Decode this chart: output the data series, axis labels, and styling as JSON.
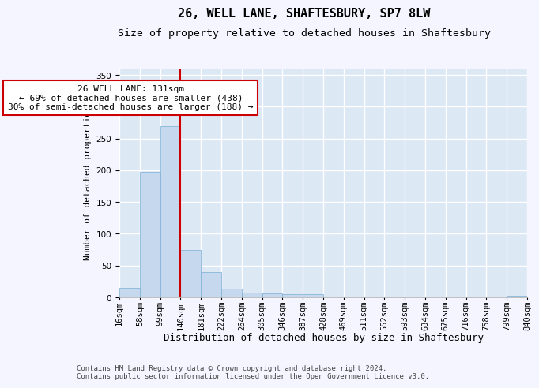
{
  "title1": "26, WELL LANE, SHAFTESBURY, SP7 8LW",
  "title2": "Size of property relative to detached houses in Shaftesbury",
  "xlabel": "Distribution of detached houses by size in Shaftesbury",
  "ylabel": "Number of detached properties",
  "bar_values": [
    15,
    198,
    270,
    75,
    40,
    14,
    8,
    6,
    5,
    5,
    0,
    0,
    0,
    0,
    0,
    0,
    0,
    0,
    0,
    3
  ],
  "bar_labels": [
    "16sqm",
    "58sqm",
    "99sqm",
    "140sqm",
    "181sqm",
    "222sqm",
    "264sqm",
    "305sqm",
    "346sqm",
    "387sqm",
    "428sqm",
    "469sqm",
    "511sqm",
    "552sqm",
    "593sqm",
    "634sqm",
    "675sqm",
    "716sqm",
    "758sqm",
    "799sqm",
    "840sqm"
  ],
  "bar_color": "#c5d8ed",
  "bar_edge_color": "#7aaed6",
  "background_color": "#dde8f5",
  "grid_color": "#ffffff",
  "vline_color": "#cc0000",
  "annotation_line1": "26 WELL LANE: 131sqm",
  "annotation_line2": "← 69% of detached houses are smaller (438)",
  "annotation_line3": "30% of semi-detached houses are larger (188) →",
  "annotation_box_color": "#ffffff",
  "annotation_box_edge": "#cc0000",
  "ylim": [
    0,
    360
  ],
  "yticks": [
    0,
    50,
    100,
    150,
    200,
    250,
    300,
    350
  ],
  "footer_text": "Contains HM Land Registry data © Crown copyright and database right 2024.\nContains public sector information licensed under the Open Government Licence v3.0.",
  "title1_fontsize": 11,
  "title2_fontsize": 9.5,
  "xlabel_fontsize": 9,
  "ylabel_fontsize": 8,
  "tick_fontsize": 7.5,
  "annotation_fontsize": 8,
  "footer_fontsize": 6.5
}
